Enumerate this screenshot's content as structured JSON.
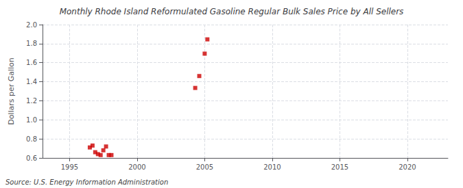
{
  "chart_data": {
    "type": "scatter",
    "title": "Monthly Rhode Island Reformulated Gasoline Regular Bulk Sales Price by All Sellers",
    "ylabel": "Dollars per Gallon",
    "annotations": [
      "Source: U.S. Energy Information Administration"
    ],
    "x": [
      1996.5,
      1996.7,
      1996.9,
      1997.1,
      1997.3,
      1997.5,
      1997.7,
      1997.9,
      1998.1,
      2004.3,
      2004.6,
      2005.0,
      2005.2
    ],
    "values": [
      0.71,
      0.73,
      0.66,
      0.64,
      0.63,
      0.68,
      0.72,
      0.63,
      0.63,
      1.335,
      1.46,
      1.695,
      1.845
    ],
    "color": "#cc0000",
    "marker": "square",
    "xlim": [
      1993.0,
      2023.0
    ],
    "ylim": [
      0.6,
      2.0
    ],
    "xticks": [
      1995,
      2000,
      2005,
      2010,
      2015,
      2020
    ],
    "yticks": [
      0.6,
      0.8,
      {
        "value": 1.0,
        "label": "1.0"
      },
      1.2,
      1.4,
      1.6,
      1.8,
      {
        "value": 2.0,
        "label": "2.0"
      }
    ],
    "grid": true
  }
}
